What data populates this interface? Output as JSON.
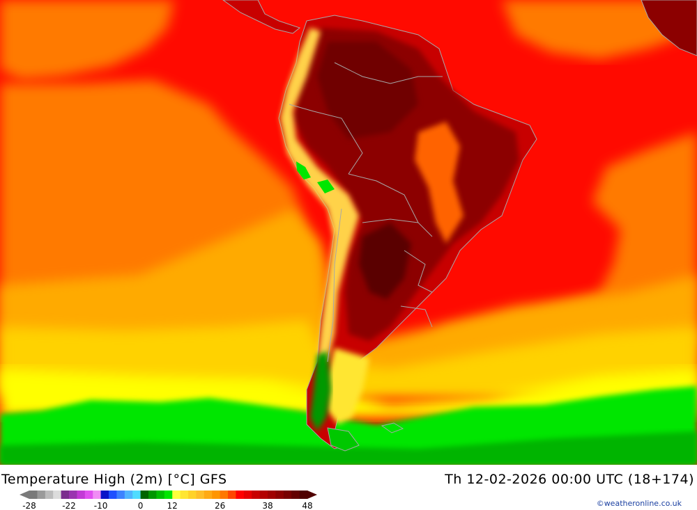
{
  "map": {
    "title": "Temperature High (2m) [°C] GFS",
    "datetime": "Th 12-02-2026 00:00 UTC (18+174)",
    "credit": "©weatheronline.co.uk",
    "region": "South America",
    "colors": {
      "ocean_warm": "#ff0000",
      "ocean_mid": "#ff7a00",
      "ocean_cool": "#ffaa00",
      "ocean_cold": "#ffff00",
      "antarctic": "#00e600",
      "land_hot": "#8c0000",
      "land_very_hot": "#5a0000",
      "andes_cool": "#ffd24a",
      "patagonia_green": "#009900",
      "border": "#a8a8a8"
    }
  },
  "legend": {
    "colors": [
      "#7a7a7a",
      "#9a9a9a",
      "#bcbcbc",
      "#dcdcdc",
      "#7b2e8e",
      "#9a35b0",
      "#c23ad6",
      "#e050f0",
      "#f08cf5",
      "#0a14c8",
      "#1e50ff",
      "#3c82ff",
      "#50b4ff",
      "#50dcff",
      "#006400",
      "#009600",
      "#00be00",
      "#00e600",
      "#ffff3c",
      "#ffe632",
      "#ffd228",
      "#ffbe28",
      "#ffaa14",
      "#ff9600",
      "#ff7800",
      "#ff4600",
      "#ff0000",
      "#e60000",
      "#c80000",
      "#b40000",
      "#a00000",
      "#8c0000",
      "#780000",
      "#640000",
      "#500000"
    ],
    "ticks": [
      {
        "label": "-28",
        "index": 0
      },
      {
        "label": "-22",
        "index": 5
      },
      {
        "label": "-10",
        "index": 9
      },
      {
        "label": "0",
        "index": 14
      },
      {
        "label": "12",
        "index": 18
      },
      {
        "label": "26",
        "index": 24
      },
      {
        "label": "38",
        "index": 30
      },
      {
        "label": "48",
        "index": 35
      }
    ]
  }
}
